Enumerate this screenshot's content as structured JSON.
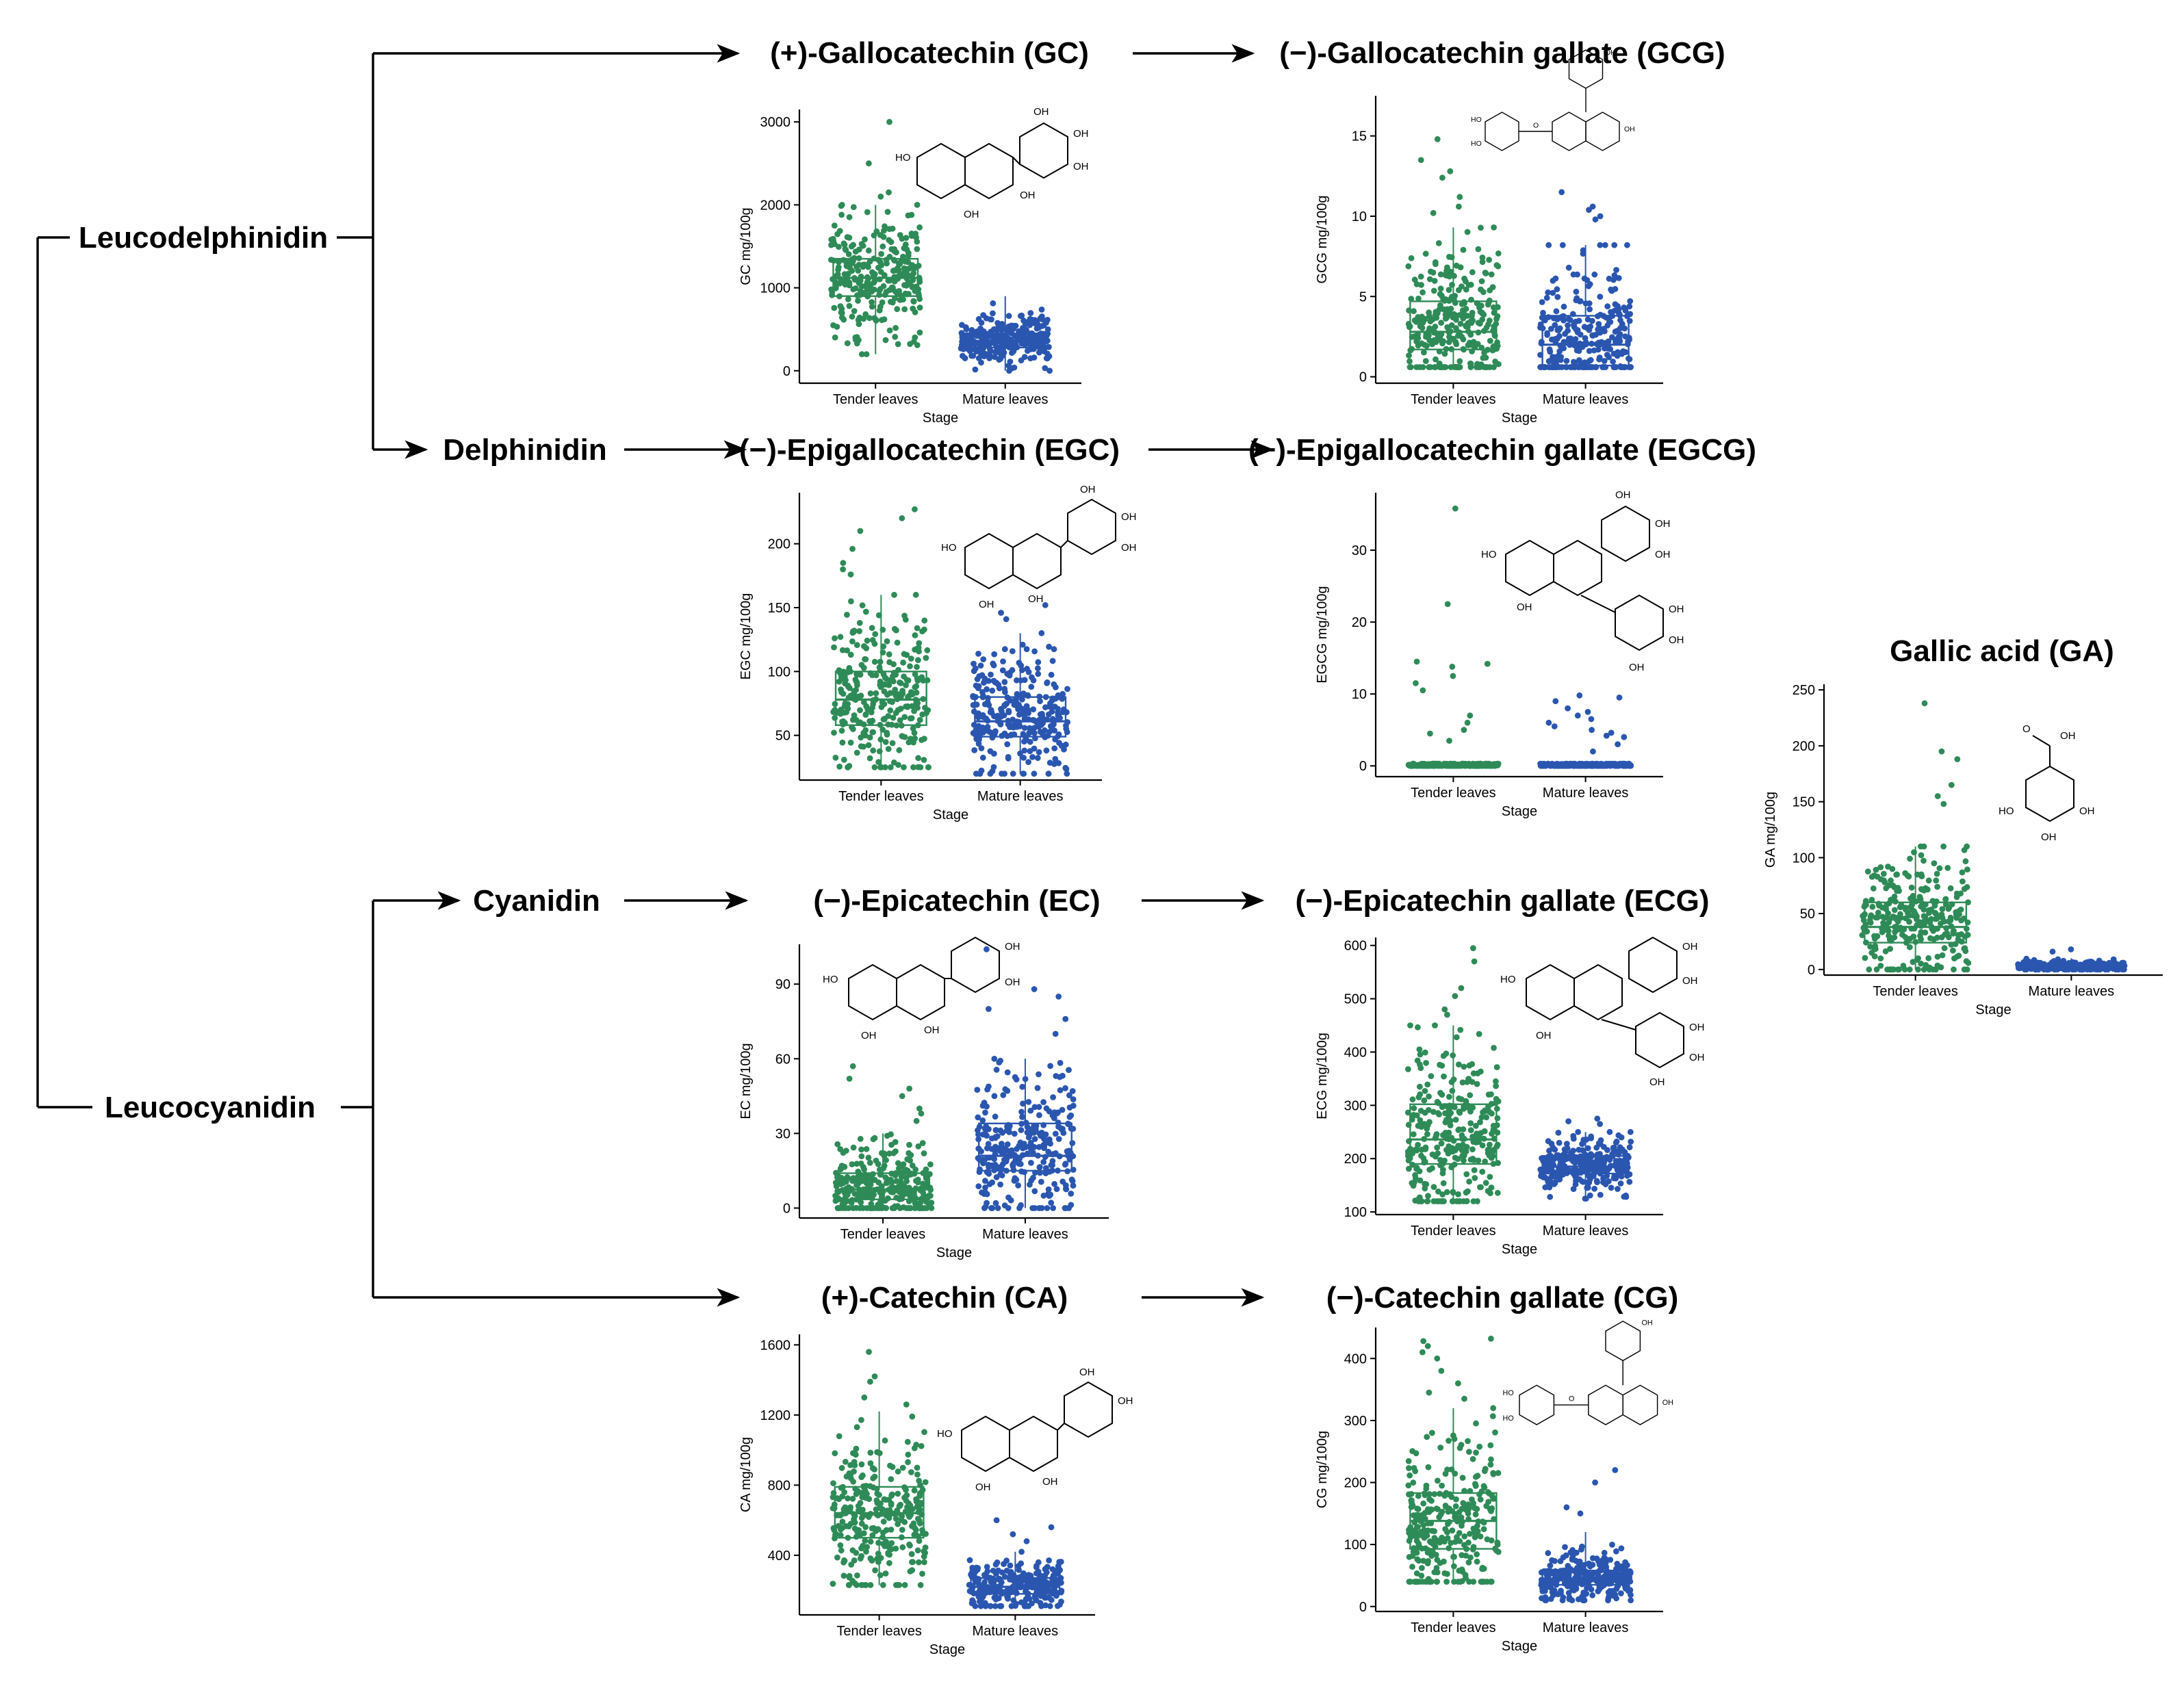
{
  "colors": {
    "tender": "#2e8b57",
    "mature": "#2a56b0",
    "line": "#000000"
  },
  "pathway_nodes": {
    "leucodelphinidin": "Leucodelphinidin",
    "delphinidin": "Delphinidin",
    "cyanidin": "Cyanidin",
    "leucocyanidin": "Leucocyanidin"
  },
  "chart_data": [
    {
      "id": "gc",
      "type": "box",
      "title": "(+)-Gallocatechin (GC)",
      "ylabel": "GC mg/100g",
      "xlabel": "Stage",
      "categories": [
        "Tender leaves",
        "Mature leaves"
      ],
      "yticks": [
        "0",
        "1000",
        "2000",
        "3000"
      ],
      "ylim": [
        -150,
        3150
      ],
      "series": [
        {
          "name": "Tender leaves",
          "n": 300,
          "q1": 900,
          "median": 1120,
          "q3": 1350,
          "whisker_low": 200,
          "whisker_high": 2000,
          "outliers": [
            3000,
            2500,
            2150,
            2100
          ]
        },
        {
          "name": "Mature leaves",
          "n": 300,
          "q1": 280,
          "median": 360,
          "q3": 450,
          "whisker_low": 0,
          "whisker_high": 900,
          "outliers": []
        }
      ]
    },
    {
      "id": "gcg",
      "type": "box",
      "title": "(−)-Gallocatechin gallate (GCG)",
      "ylabel": "GCG mg/100g",
      "xlabel": "Stage",
      "categories": [
        "Tender leaves",
        "Mature leaves"
      ],
      "yticks": [
        "0",
        "5",
        "10",
        "15"
      ],
      "ylim": [
        -0.4,
        17.5
      ],
      "series": [
        {
          "name": "Tender leaves",
          "n": 300,
          "q1": 1.7,
          "median": 2.8,
          "q3": 4.7,
          "whisker_low": 0.6,
          "whisker_high": 9.3,
          "outliers": [
            14.8,
            13.5,
            12.8,
            12.4,
            11.2,
            10.6,
            10.2
          ]
        },
        {
          "name": "Mature leaves",
          "n": 300,
          "q1": 0.7,
          "median": 2.0,
          "q3": 3.8,
          "whisker_low": 0.6,
          "whisker_high": 8.2,
          "outliers": [
            11.5,
            10.6,
            10.4,
            10.0,
            9.8
          ]
        }
      ]
    },
    {
      "id": "egc",
      "type": "box",
      "title": "(−)-Epigallocatechin (EGC)",
      "ylabel": "EGC mg/100g",
      "xlabel": "Stage",
      "categories": [
        "Tender leaves",
        "Mature leaves"
      ],
      "yticks": [
        "50",
        "100",
        "150",
        "200"
      ],
      "ylim": [
        15,
        240
      ],
      "series": [
        {
          "name": "Tender leaves",
          "n": 300,
          "q1": 58,
          "median": 78,
          "q3": 100,
          "whisker_low": 25,
          "whisker_high": 160,
          "outliers": [
            227,
            220,
            210,
            196,
            185,
            180,
            176
          ]
        },
        {
          "name": "Mature leaves",
          "n": 300,
          "q1": 49,
          "median": 61,
          "q3": 80,
          "whisker_low": 20,
          "whisker_high": 130,
          "outliers": [
            152,
            146,
            141
          ]
        }
      ]
    },
    {
      "id": "egcg",
      "type": "box",
      "title": "(−)-Epigallocatechin gallate (EGCG)",
      "ylabel": "EGCG mg/100g",
      "xlabel": "Stage",
      "categories": [
        "Tender leaves",
        "Mature leaves"
      ],
      "yticks": [
        "0",
        "10",
        "20",
        "30"
      ],
      "ylim": [
        -1.5,
        38
      ],
      "series": [
        {
          "name": "Tender leaves",
          "n": 300,
          "q1": 0,
          "median": 0.1,
          "q3": 0.2,
          "whisker_low": 0,
          "whisker_high": 0.3,
          "outliers": [
            35.8,
            22.5,
            14.5,
            14.2,
            13.8,
            12.5,
            11.5,
            10.5,
            7,
            6,
            5,
            4.5,
            3.5
          ]
        },
        {
          "name": "Mature leaves",
          "n": 300,
          "q1": 0,
          "median": 0.1,
          "q3": 0.2,
          "whisker_low": 0,
          "whisker_high": 0.3,
          "outliers": [
            9.8,
            9.5,
            9.0,
            8.0,
            7.5,
            7.0,
            6.5,
            6.0,
            5.5,
            5.0,
            4.6,
            4.2,
            4.0,
            3.0,
            2.0
          ]
        }
      ]
    },
    {
      "id": "ec",
      "type": "box",
      "title": "(−)-Epicatechin (EC)",
      "ylabel": "EC mg/100g",
      "xlabel": "Stage",
      "categories": [
        "Tender leaves",
        "Mature leaves"
      ],
      "yticks": [
        "0",
        "30",
        "60",
        "90"
      ],
      "ylim": [
        -4,
        106
      ],
      "series": [
        {
          "name": "Tender leaves",
          "n": 300,
          "q1": 3.5,
          "median": 7.5,
          "q3": 14,
          "whisker_low": 0,
          "whisker_high": 30,
          "outliers": [
            57,
            52,
            48,
            45,
            40,
            38,
            35
          ]
        },
        {
          "name": "Mature leaves",
          "n": 300,
          "q1": 15,
          "median": 21,
          "q3": 34,
          "whisker_low": 0,
          "whisker_high": 60,
          "outliers": [
            104,
            88,
            85,
            80,
            76,
            70
          ]
        }
      ]
    },
    {
      "id": "ecg",
      "type": "box",
      "title": "(−)-Epicatechin gallate (ECG)",
      "ylabel": "ECG mg/100g",
      "xlabel": "Stage",
      "categories": [
        "Tender leaves",
        "Mature leaves"
      ],
      "yticks": [
        "100",
        "200",
        "300",
        "400",
        "500",
        "600"
      ],
      "ylim": [
        95,
        615
      ],
      "series": [
        {
          "name": "Tender leaves",
          "n": 300,
          "q1": 190,
          "median": 236,
          "q3": 302,
          "whisker_low": 120,
          "whisker_high": 450,
          "outliers": [
            595,
            570,
            520,
            505,
            480,
            470
          ]
        },
        {
          "name": "Mature leaves",
          "n": 300,
          "q1": 172,
          "median": 185,
          "q3": 205,
          "whisker_low": 125,
          "whisker_high": 250,
          "outliers": [
            275,
            270,
            265
          ]
        }
      ]
    },
    {
      "id": "ca",
      "type": "box",
      "title": "(+)-Catechin (CA)",
      "ylabel": "CA mg/100g",
      "xlabel": "Stage",
      "categories": [
        "Tender leaves",
        "Mature leaves"
      ],
      "yticks": [
        "400",
        "800",
        "1200",
        "1600"
      ],
      "ylim": [
        60,
        1660
      ],
      "series": [
        {
          "name": "Tender leaves",
          "n": 300,
          "q1": 500,
          "median": 640,
          "q3": 790,
          "whisker_low": 230,
          "whisker_high": 1220,
          "outliers": [
            1560,
            1420,
            1390,
            1300,
            1260
          ]
        },
        {
          "name": "Mature leaves",
          "n": 300,
          "q1": 180,
          "median": 220,
          "q3": 270,
          "whisker_low": 110,
          "whisker_high": 420,
          "outliers": [
            600,
            560,
            520,
            480
          ]
        }
      ]
    },
    {
      "id": "cg",
      "type": "box",
      "title": "(−)-Catechin gallate (CG)",
      "ylabel": "CG mg/100g",
      "xlabel": "Stage",
      "categories": [
        "Tender leaves",
        "Mature leaves"
      ],
      "yticks": [
        "0",
        "100",
        "200",
        "300",
        "400"
      ],
      "ylim": [
        -8,
        450
      ],
      "series": [
        {
          "name": "Tender leaves",
          "n": 300,
          "q1": 93,
          "median": 138,
          "q3": 183,
          "whisker_low": 40,
          "whisker_high": 320,
          "outliers": [
            432,
            428,
            420,
            410,
            400,
            380,
            360,
            345,
            335
          ]
        },
        {
          "name": "Mature leaves",
          "n": 300,
          "q1": 35,
          "median": 45,
          "q3": 58,
          "whisker_low": 10,
          "whisker_high": 120,
          "outliers": [
            220,
            200,
            160,
            150
          ]
        }
      ]
    },
    {
      "id": "ga",
      "type": "box",
      "title": "Gallic acid (GA)",
      "ylabel": "GA mg/100g",
      "xlabel": "Stage",
      "categories": [
        "Tender leaves",
        "Mature leaves"
      ],
      "yticks": [
        "0",
        "50",
        "100",
        "150",
        "200",
        "250"
      ],
      "ylim": [
        -5,
        255
      ],
      "series": [
        {
          "name": "Tender leaves",
          "n": 300,
          "q1": 24,
          "median": 38,
          "q3": 60,
          "whisker_low": 0,
          "whisker_high": 110,
          "outliers": [
            238,
            195,
            188,
            165,
            155,
            148
          ]
        },
        {
          "name": "Mature leaves",
          "n": 300,
          "q1": 1,
          "median": 2.5,
          "q3": 4,
          "whisker_low": 0,
          "whisker_high": 10,
          "outliers": [
            18,
            16
          ]
        }
      ]
    }
  ],
  "chem_labels": {
    "oh": "OH",
    "ho": "HO",
    "o": "O"
  }
}
